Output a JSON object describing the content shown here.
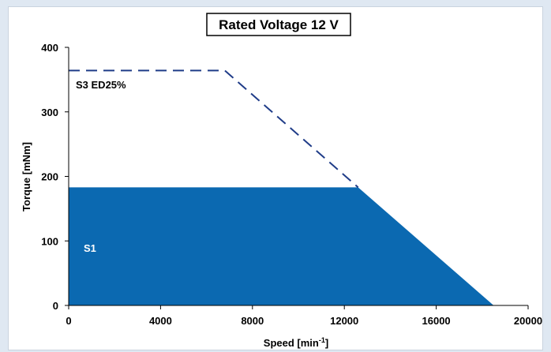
{
  "chart_data": {
    "type": "area",
    "title": "Rated Voltage 12 V",
    "xlabel_main": "Speed [min",
    "xlabel_sup": "-1",
    "xlabel_end": "]",
    "ylabel": "Torque [mNm]",
    "xlim": [
      0,
      20000
    ],
    "ylim": [
      0,
      400
    ],
    "x_ticks": [
      "0",
      "4000",
      "8000",
      "12000",
      "16000",
      "20000"
    ],
    "y_ticks": [
      "0",
      "100",
      "200",
      "300",
      "400"
    ],
    "grid": false,
    "series": [
      {
        "name": "S1",
        "style": "filled",
        "color": "#0b69b1",
        "x": [
          0,
          12600,
          18500
        ],
        "y": [
          183,
          183,
          0
        ]
      },
      {
        "name": "S3 ED25%",
        "style": "dashed",
        "color": "#1f3c88",
        "x": [
          0,
          6800,
          12600
        ],
        "y": [
          364,
          364,
          183
        ]
      }
    ]
  }
}
